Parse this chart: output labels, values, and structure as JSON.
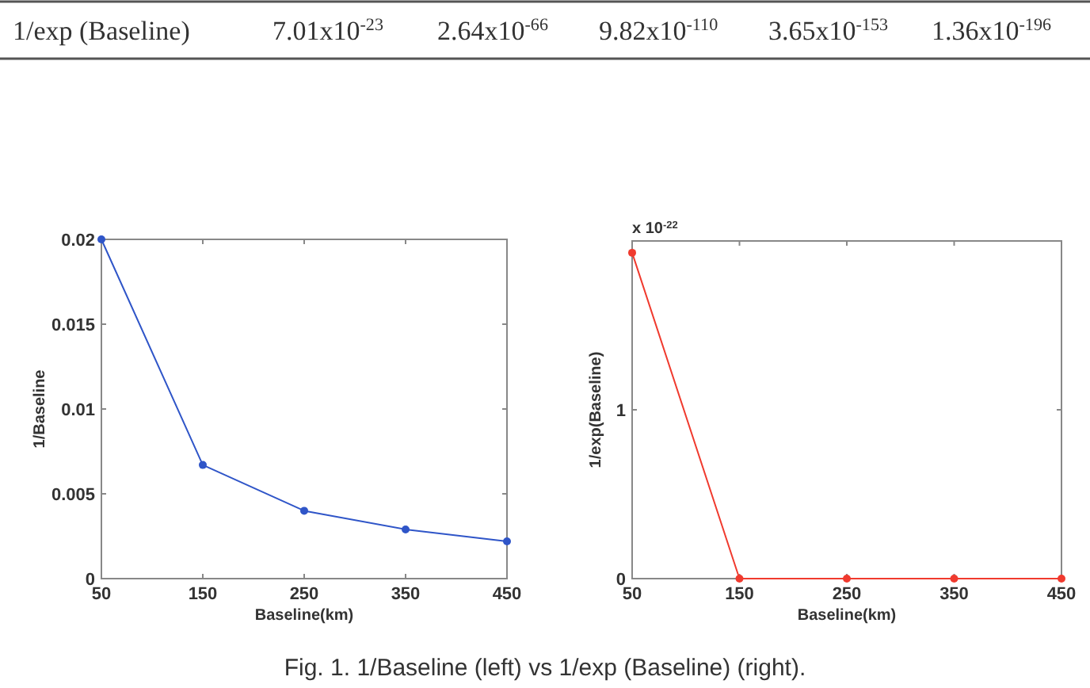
{
  "chart_data": [
    {
      "type": "line",
      "xlabel": "Baseline(km)",
      "ylabel": "1/Baseline",
      "x": [
        50,
        150,
        250,
        350,
        450
      ],
      "series": [
        {
          "color": "#2f55c8",
          "values": [
            0.02,
            0.0067,
            0.004,
            0.0029,
            0.0022
          ]
        }
      ],
      "xlim": [
        50,
        450
      ],
      "xticks": [
        50,
        150,
        250,
        350,
        450
      ],
      "ylim": [
        0,
        0.02
      ],
      "yticks": [
        0,
        0.005,
        0.01,
        0.015,
        0.02
      ],
      "marker": "circle",
      "annotations": [
        "1/exp (Baseline)",
        "7.01x10$^{-23}$",
        "2.64x10$^{-66}$",
        "9.82x10$^{-110}$",
        "3.65x10$^{-153}$",
        "1.36x10$^{-196}$",
        "Fig. 1.  1/Baseline (left) vs 1/exp (Baseline) (right)."
      ]
    },
    {
      "type": "line",
      "xlabel": "Baseline(km)",
      "ylabel": "1/exp(Baseline)",
      "x": [
        50,
        150,
        250,
        350,
        450
      ],
      "series": [
        {
          "color": "#f03a2e",
          "values": [
            1.93,
            0,
            0,
            0,
            0
          ]
        }
      ],
      "xlim": [
        50,
        450
      ],
      "xticks": [
        50,
        150,
        250,
        350,
        450
      ],
      "ylim": [
        0,
        2
      ],
      "yticks": [
        0,
        1
      ],
      "marker": "circle",
      "annotations": [
        "x 10$^{-22}$"
      ]
    }
  ]
}
